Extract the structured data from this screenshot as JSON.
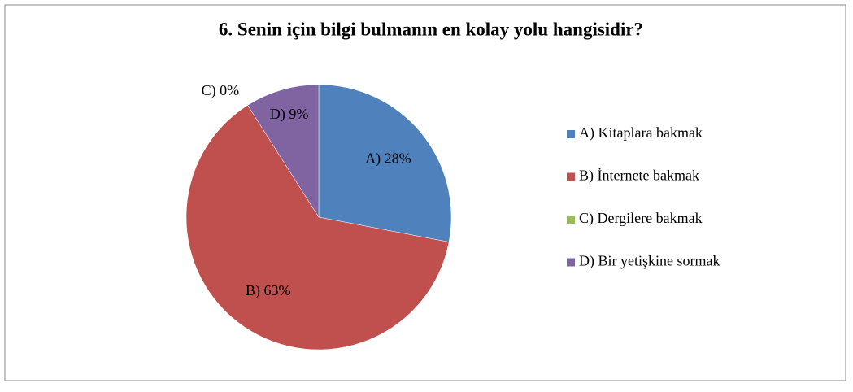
{
  "chart_data": {
    "type": "pie",
    "title": "6. Senin için bilgi bulmanın en kolay yolu hangisidir?",
    "categories": [
      "A) Kitaplara bakmak",
      "B) İnternete bakmak",
      "C) Dergilere bakmak",
      "D) Bir yetişkine sormak"
    ],
    "values": [
      28,
      63,
      0,
      9
    ],
    "value_labels": [
      "A) 28%",
      "B) 63%",
      "C) 0%",
      "D) 9%"
    ],
    "colors": [
      "#4f81bd",
      "#c0504d",
      "#9bbb59",
      "#8064a2"
    ],
    "legend": "right"
  }
}
